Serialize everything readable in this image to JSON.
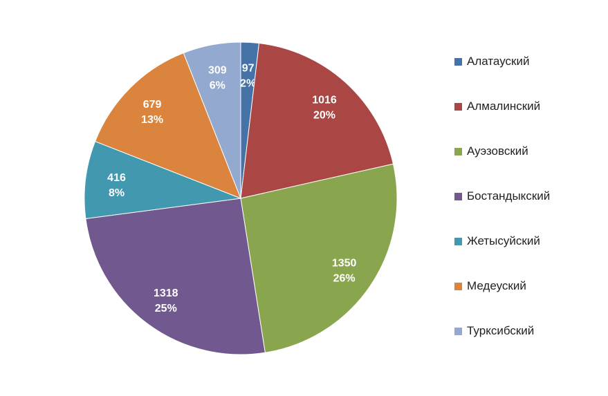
{
  "chart_data": {
    "type": "pie",
    "title": "",
    "legend_position": "right",
    "categories": [
      "Алатауский",
      "Алмалинский",
      "Ауэзовский",
      "Бостандыкский",
      "Жетысуйский",
      "Медеуский",
      "Турксибский"
    ],
    "values": [
      97,
      1016,
      1350,
      1318,
      416,
      679,
      309
    ],
    "percent_labels": [
      "2%",
      "20%",
      "26%",
      "25%",
      "8%",
      "13%",
      "6%"
    ],
    "colors": [
      "#4572A7",
      "#AA4643",
      "#89A54E",
      "#71588F",
      "#4198AF",
      "#DB843D",
      "#93A9CF"
    ]
  }
}
